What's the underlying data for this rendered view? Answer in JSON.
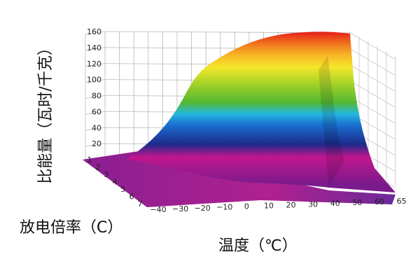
{
  "chart_data": {
    "type": "surface3d",
    "title": "",
    "zlabel": "比能量（瓦时/千克）",
    "ylabel": "放电倍率（C）",
    "xlabel": "温度（℃）",
    "x_ticks": [
      "−40",
      "−30",
      "−20",
      "−10",
      "0",
      "10",
      "20",
      "30",
      "40",
      "50",
      "60",
      "65"
    ],
    "y_ticks": [
      "1",
      "2",
      "3",
      "4",
      "5",
      "6",
      "7"
    ],
    "z_ticks": [
      "20",
      "40",
      "60",
      "80",
      "100",
      "120",
      "140",
      "160"
    ],
    "zlim": [
      0,
      160
    ],
    "colormap": [
      "#7a1a8c",
      "#c0178e",
      "#1d2a8a",
      "#1a6fd0",
      "#25b8e0",
      "#52b830",
      "#a8d328",
      "#f5e62a",
      "#f7b226",
      "#f0701c",
      "#e41d1d"
    ],
    "grid": true
  }
}
